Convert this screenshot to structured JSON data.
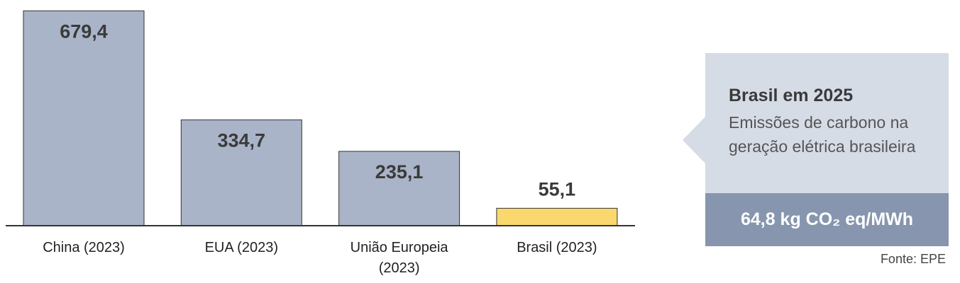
{
  "chart_data": {
    "type": "bar",
    "categories": [
      "China (2023)",
      "EUA (2023)",
      "União Europeia (2023)",
      "Brasil (2023)"
    ],
    "values": [
      679.4,
      334.7,
      235.1,
      55.1
    ],
    "value_labels": [
      "679,4",
      "334,7",
      "235,1",
      "55,1"
    ],
    "colors": [
      "#aab4c8",
      "#aab4c8",
      "#aab4c8",
      "#fad86e"
    ],
    "ylim": [
      0,
      680
    ],
    "annotation": {
      "title": "Brasil em 2025",
      "text": "Emissões de carbono na geração elétrica brasileira",
      "highlight": "64,8 kg CO₂ eq/MWh"
    },
    "source": "Fonte: EPE"
  }
}
